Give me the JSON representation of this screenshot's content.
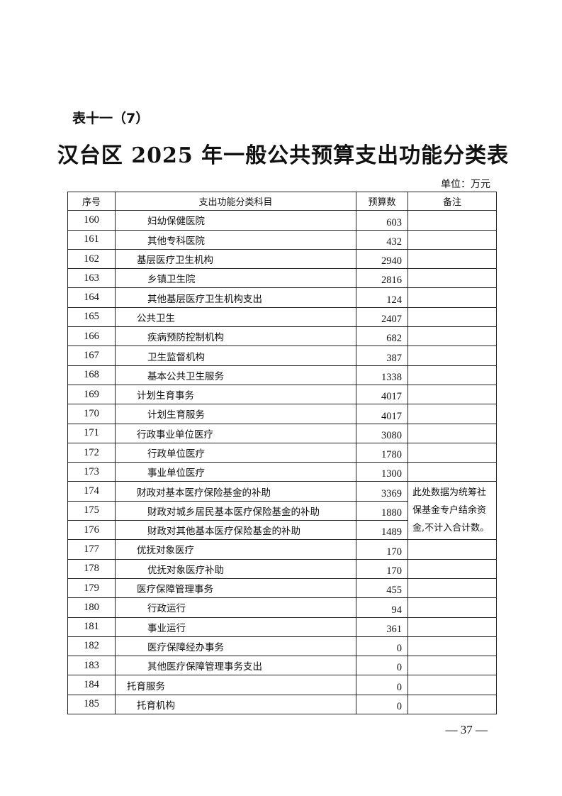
{
  "subtitle": "表十一（7）",
  "title": "汉台区 2025 年一般公共预算支出功能分类表",
  "unit": "单位：万元",
  "headers": [
    "序号",
    "支出功能分类科目",
    "预算数",
    "备注"
  ],
  "rows": [
    {
      "no": "160",
      "name": "妇幼保健医院",
      "level": 3,
      "value": "603"
    },
    {
      "no": "161",
      "name": "其他专科医院",
      "level": 3,
      "value": "432"
    },
    {
      "no": "162",
      "name": "基层医疗卫生机构",
      "level": 2,
      "value": "2940"
    },
    {
      "no": "163",
      "name": "乡镇卫生院",
      "level": 3,
      "value": "2816"
    },
    {
      "no": "164",
      "name": "其他基层医疗卫生机构支出",
      "level": 3,
      "value": "124"
    },
    {
      "no": "165",
      "name": "公共卫生",
      "level": 2,
      "value": "2407"
    },
    {
      "no": "166",
      "name": "疾病预防控制机构",
      "level": 3,
      "value": "682"
    },
    {
      "no": "167",
      "name": "卫生监督机构",
      "level": 3,
      "value": "387"
    },
    {
      "no": "168",
      "name": "基本公共卫生服务",
      "level": 3,
      "value": "1338"
    },
    {
      "no": "169",
      "name": "计划生育事务",
      "level": 2,
      "value": "4017"
    },
    {
      "no": "170",
      "name": "计划生育服务",
      "level": 3,
      "value": "4017"
    },
    {
      "no": "171",
      "name": "行政事业单位医疗",
      "level": 2,
      "value": "3080"
    },
    {
      "no": "172",
      "name": "行政单位医疗",
      "level": 3,
      "value": "1780"
    },
    {
      "no": "173",
      "name": "事业单位医疗",
      "level": 3,
      "value": "1300"
    },
    {
      "no": "174",
      "name": "财政对基本医疗保险基金的补助",
      "level": 2,
      "value": "3369",
      "note": "此处数据为统筹社保基金专户结余资金,不计入合计数。",
      "note_rows": 3
    },
    {
      "no": "175",
      "name": "财政对城乡居民基本医疗保险基金的补助",
      "level": 3,
      "value": "1880",
      "note_merged": true
    },
    {
      "no": "176",
      "name": "财政对其他基本医疗保险基金的补助",
      "level": 3,
      "value": "1489",
      "note_merged": true
    },
    {
      "no": "177",
      "name": "优抚对象医疗",
      "level": 2,
      "value": "170"
    },
    {
      "no": "178",
      "name": "优抚对象医疗补助",
      "level": 3,
      "value": "170"
    },
    {
      "no": "179",
      "name": "医疗保障管理事务",
      "level": 2,
      "value": "455"
    },
    {
      "no": "180",
      "name": "行政运行",
      "level": 3,
      "value": "94"
    },
    {
      "no": "181",
      "name": "事业运行",
      "level": 3,
      "value": "361"
    },
    {
      "no": "182",
      "name": "医疗保障经办事务",
      "level": 3,
      "value": "0"
    },
    {
      "no": "183",
      "name": "其他医疗保障管理事务支出",
      "level": 3,
      "value": "0"
    },
    {
      "no": "184",
      "name": "托育服务",
      "level": 1,
      "value": "0"
    },
    {
      "no": "185",
      "name": "托育机构",
      "level": 2,
      "value": "0"
    }
  ],
  "page_number": "— 37 —"
}
